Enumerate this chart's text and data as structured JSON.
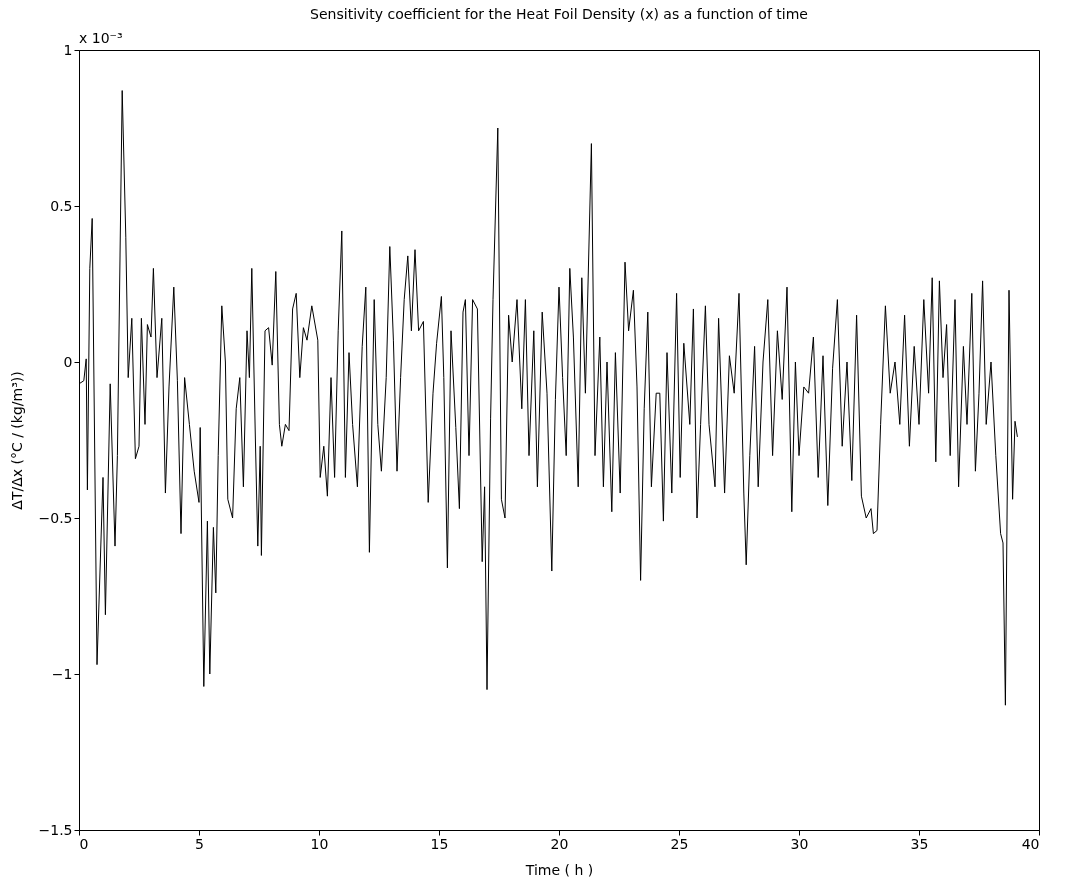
{
  "chart_data": {
    "type": "line",
    "title": "Sensitivity coefficient for the Heat Foil Density (x) as a function of time",
    "xlabel": "Time ( h )",
    "ylabel": "ΔT/Δx  (°C / (kg/m³))",
    "annotations": [
      "x 10⁻³"
    ],
    "xlim": [
      0,
      40
    ],
    "xticks": [
      0,
      5,
      10,
      15,
      20,
      25,
      30,
      35,
      40
    ],
    "ylim": [
      -1.5,
      1
    ],
    "yticks": [
      -1.5,
      -1,
      -0.5,
      0,
      0.5,
      1
    ],
    "grid": false,
    "marker": "none",
    "line_style": "solid",
    "series": [
      {
        "color": "#000000",
        "x": [
          0,
          0.2,
          0.3,
          0.35,
          0.45,
          0.55,
          0.75,
          1.0,
          1.1,
          1.3,
          1.5,
          1.6,
          1.8,
          1.95,
          2.05,
          2.2,
          2.35,
          2.5,
          2.6,
          2.75,
          2.85,
          3.0,
          3.1,
          3.25,
          3.45,
          3.6,
          3.75,
          3.95,
          4.1,
          4.25,
          4.4,
          4.6,
          4.8,
          5.0,
          5.05,
          5.2,
          5.35,
          5.45,
          5.6,
          5.7,
          5.8,
          5.95,
          6.1,
          6.2,
          6.4,
          6.55,
          6.7,
          6.85,
          7.0,
          7.1,
          7.2,
          7.35,
          7.45,
          7.55,
          7.6,
          7.75,
          7.9,
          8.05,
          8.2,
          8.35,
          8.45,
          8.6,
          8.75,
          8.9,
          9.05,
          9.2,
          9.35,
          9.5,
          9.7,
          9.95,
          10.05,
          10.2,
          10.35,
          10.5,
          10.65,
          10.8,
          10.95,
          11.1,
          11.25,
          11.4,
          11.6,
          11.8,
          11.95,
          12.1,
          12.3,
          12.45,
          12.6,
          12.8,
          12.95,
          13.1,
          13.25,
          13.4,
          13.55,
          13.7,
          13.85,
          14.0,
          14.15,
          14.35,
          14.55,
          14.75,
          14.9,
          15.1,
          15.2,
          15.35,
          15.5,
          15.7,
          15.85,
          16.0,
          16.1,
          16.25,
          16.4,
          16.6,
          16.8,
          16.9,
          17.0,
          17.15,
          17.25,
          17.45,
          17.6,
          17.75,
          17.9,
          18.05,
          18.25,
          18.45,
          18.6,
          18.75,
          18.95,
          19.1,
          19.3,
          19.5,
          19.7,
          19.85,
          20.0,
          20.15,
          20.3,
          20.45,
          20.6,
          20.8,
          20.95,
          21.1,
          21.35,
          21.5,
          21.7,
          21.85,
          22.0,
          22.2,
          22.35,
          22.55,
          22.75,
          22.9,
          23.1,
          23.25,
          23.4,
          23.55,
          23.7,
          23.85,
          24.05,
          24.2,
          24.35,
          24.5,
          24.7,
          24.9,
          25.05,
          25.2,
          25.45,
          25.6,
          25.75,
          25.9,
          26.1,
          26.25,
          26.5,
          26.65,
          26.9,
          27.1,
          27.3,
          27.5,
          27.7,
          27.8,
          27.95,
          28.15,
          28.3,
          28.5,
          28.7,
          28.9,
          29.1,
          29.3,
          29.5,
          29.7,
          29.85,
          30.0,
          30.2,
          30.4,
          30.6,
          30.8,
          31.0,
          31.2,
          31.4,
          31.6,
          31.8,
          32.0,
          32.2,
          32.4,
          32.6,
          32.8,
          33.0,
          33.1,
          33.25,
          33.4,
          33.6,
          33.8,
          34.0,
          34.2,
          34.4,
          34.6,
          34.8,
          35.0,
          35.2,
          35.4,
          35.55,
          35.7,
          35.85,
          36.0,
          36.15,
          36.3,
          36.5,
          36.65,
          36.85,
          37.0,
          37.2,
          37.35,
          37.5,
          37.65,
          37.8,
          38.0,
          38.2,
          38.4,
          38.5,
          38.6,
          38.75,
          38.9,
          39.0,
          39.1
        ],
        "values": [
          -0.07,
          -0.06,
          0.01,
          -0.41,
          0.3,
          0.46,
          -0.97,
          -0.37,
          -0.81,
          -0.07,
          -0.59,
          -0.3,
          0.87,
          0.4,
          -0.05,
          0.14,
          -0.31,
          -0.27,
          0.14,
          -0.2,
          0.12,
          0.08,
          0.3,
          -0.05,
          0.14,
          -0.42,
          -0.08,
          0.24,
          -0.06,
          -0.55,
          -0.05,
          -0.2,
          -0.35,
          -0.45,
          -0.21,
          -1.04,
          -0.51,
          -1.0,
          -0.53,
          -0.74,
          -0.3,
          0.18,
          0.0,
          -0.44,
          -0.5,
          -0.15,
          -0.05,
          -0.4,
          0.1,
          -0.05,
          0.3,
          -0.25,
          -0.59,
          -0.27,
          -0.62,
          0.1,
          0.11,
          -0.01,
          0.29,
          -0.2,
          -0.27,
          -0.2,
          -0.22,
          0.17,
          0.22,
          -0.05,
          0.11,
          0.07,
          0.18,
          0.07,
          -0.37,
          -0.27,
          -0.43,
          -0.05,
          -0.37,
          0.1,
          0.42,
          -0.37,
          0.03,
          -0.2,
          -0.4,
          0.05,
          0.24,
          -0.61,
          0.2,
          -0.2,
          -0.35,
          -0.05,
          0.37,
          0.07,
          -0.35,
          -0.05,
          0.2,
          0.34,
          0.1,
          0.36,
          0.1,
          0.13,
          -0.45,
          -0.1,
          0.06,
          0.21,
          -0.05,
          -0.66,
          0.1,
          -0.21,
          -0.47,
          0.16,
          0.2,
          -0.3,
          0.2,
          0.17,
          -0.64,
          -0.4,
          -1.05,
          -0.18,
          0.2,
          0.75,
          -0.44,
          -0.5,
          0.15,
          0.0,
          0.2,
          -0.15,
          0.2,
          -0.3,
          0.1,
          -0.4,
          0.16,
          -0.1,
          -0.67,
          -0.12,
          0.24,
          -0.05,
          -0.3,
          0.3,
          0.08,
          -0.4,
          0.27,
          -0.1,
          0.7,
          -0.3,
          0.08,
          -0.4,
          0.0,
          -0.48,
          0.03,
          -0.42,
          0.32,
          0.1,
          0.23,
          -0.08,
          -0.7,
          -0.15,
          0.16,
          -0.4,
          -0.1,
          -0.1,
          -0.51,
          0.03,
          -0.42,
          0.22,
          -0.37,
          0.06,
          -0.2,
          0.17,
          -0.5,
          -0.2,
          0.18,
          -0.2,
          -0.4,
          0.14,
          -0.42,
          0.02,
          -0.1,
          0.22,
          -0.42,
          -0.65,
          -0.3,
          0.05,
          -0.4,
          0.0,
          0.2,
          -0.3,
          0.1,
          -0.12,
          0.24,
          -0.48,
          0.0,
          -0.3,
          -0.08,
          -0.1,
          0.08,
          -0.37,
          0.02,
          -0.46,
          -0.02,
          0.2,
          -0.27,
          0.0,
          -0.38,
          0.15,
          -0.43,
          -0.5,
          -0.47,
          -0.55,
          -0.54,
          -0.2,
          0.18,
          -0.1,
          0.0,
          -0.2,
          0.15,
          -0.27,
          0.05,
          -0.2,
          0.2,
          -0.1,
          0.27,
          -0.32,
          0.26,
          -0.05,
          0.12,
          -0.3,
          0.2,
          -0.4,
          0.05,
          -0.2,
          0.22,
          -0.35,
          -0.1,
          0.26,
          -0.2,
          0.0,
          -0.3,
          -0.55,
          -0.58,
          -1.1,
          0.23,
          -0.44,
          -0.19,
          -0.24
        ]
      }
    ]
  }
}
